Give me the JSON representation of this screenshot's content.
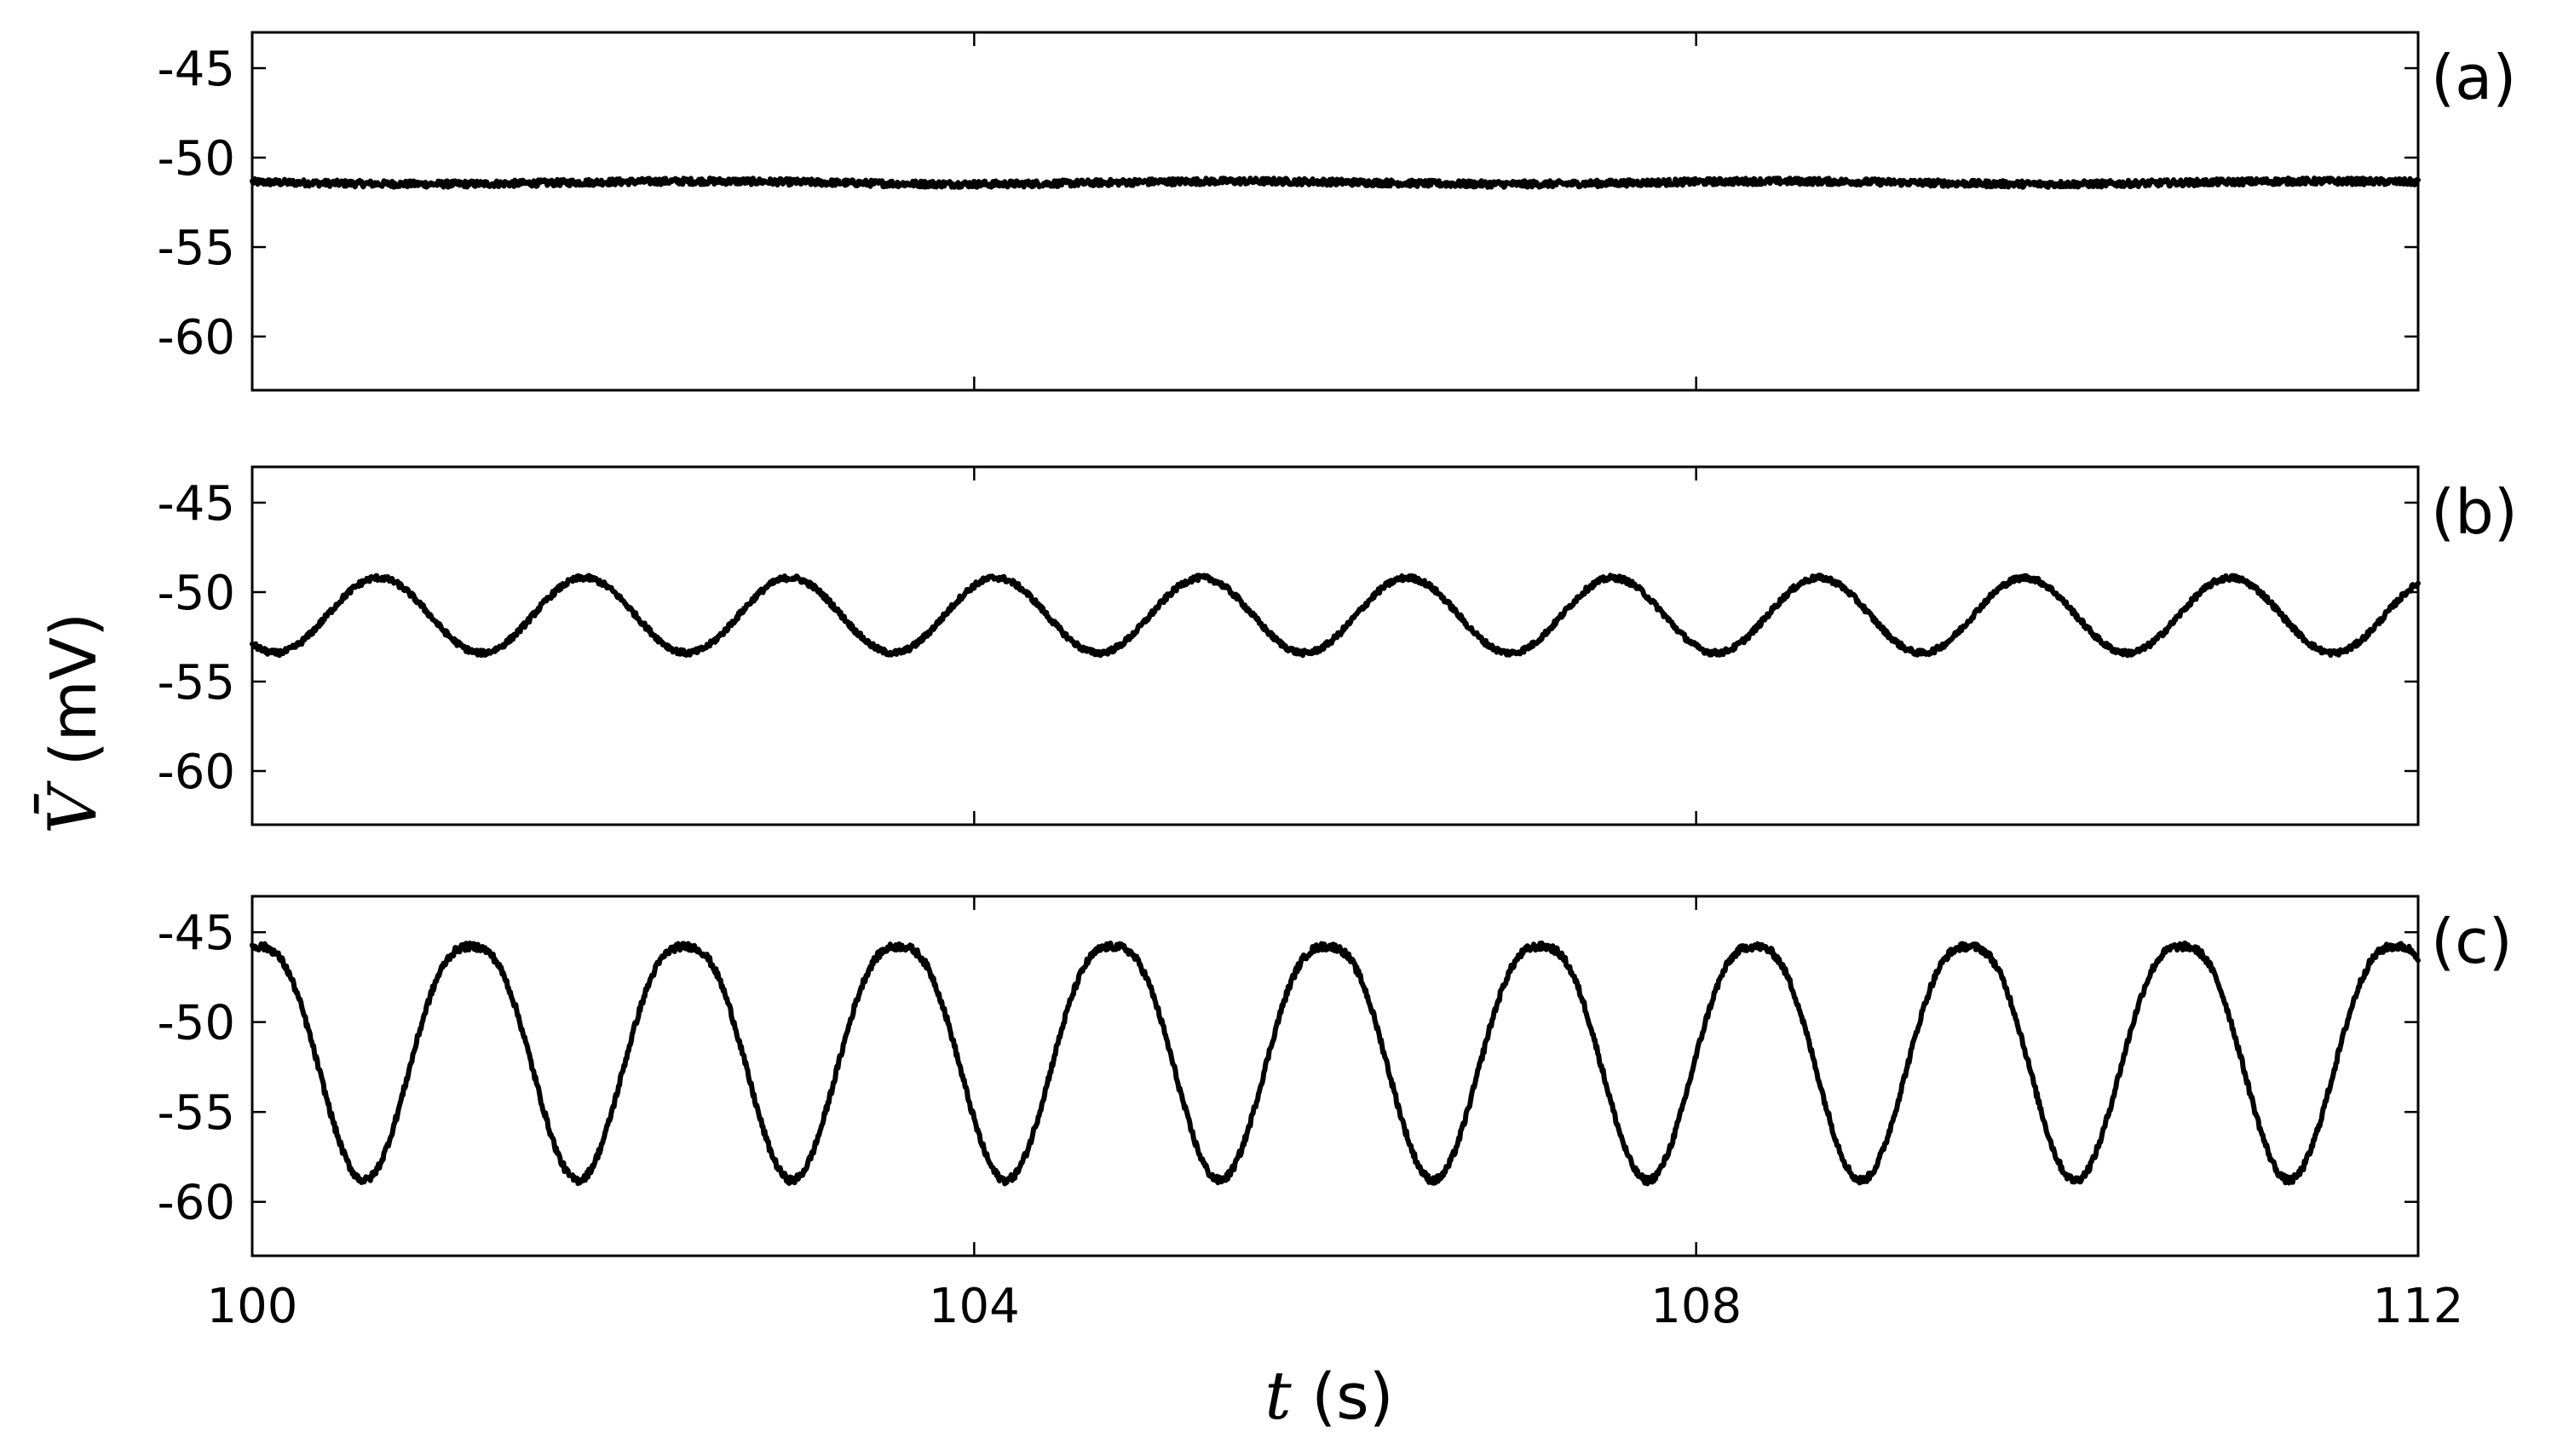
{
  "chart_data": [
    {
      "type": "line",
      "panel_label": "(a)",
      "xlim": [
        100,
        112
      ],
      "ylim": [
        -63,
        -43
      ],
      "yticks": [
        -45,
        -50,
        -55,
        -60
      ],
      "xticks": [
        100,
        104,
        108,
        112
      ],
      "series": [
        {
          "kind": "flat",
          "mean": -51.4,
          "noise": 0.18
        }
      ],
      "sample_points": {
        "x": [
          100,
          103,
          106,
          109,
          112
        ],
        "y": [
          -51.4,
          -51.4,
          -51.4,
          -51.4,
          -51.5
        ]
      }
    },
    {
      "type": "line",
      "panel_label": "(b)",
      "xlim": [
        100,
        112
      ],
      "ylim": [
        -63,
        -43
      ],
      "yticks": [
        -45,
        -50,
        -55,
        -60
      ],
      "xticks": [
        100,
        104,
        108,
        112
      ],
      "series": [
        {
          "kind": "sinusoid",
          "mean": -51.3,
          "amplitude": 2.1,
          "period": 1.14,
          "first_peak": 100.7,
          "noise": 0.15
        }
      ],
      "sample_points": {
        "x": [
          100.7,
          101.27,
          101.84,
          102.41,
          102.98
        ],
        "y": [
          -49.2,
          -51.3,
          -53.4,
          -51.3,
          -49.2
        ]
      }
    },
    {
      "type": "line",
      "panel_label": "(c)",
      "xlim": [
        100,
        112
      ],
      "ylim": [
        -63,
        -43
      ],
      "yticks": [
        -45,
        -50,
        -55,
        -60
      ],
      "xticks": [
        100,
        104,
        108,
        112
      ],
      "xticklabels": [
        "100",
        "104",
        "108",
        "112"
      ],
      "series": [
        {
          "kind": "troughs",
          "top": -45.8,
          "bottom": -58.8,
          "period": 1.185,
          "first_trough": 100.62,
          "trough_width": 0.2,
          "noise": 0.2
        }
      ],
      "sample_points": {
        "x": [
          100.62,
          101.2,
          101.8,
          102.4,
          103.0
        ],
        "y": [
          -58.8,
          -45.8,
          -58.8,
          -45.8,
          -58.8
        ]
      }
    }
  ],
  "axes": {
    "ylabel_var": "V̄",
    "ylabel_unit": " (mV)",
    "xlabel_var": "t",
    "xlabel_unit": " (s)"
  }
}
